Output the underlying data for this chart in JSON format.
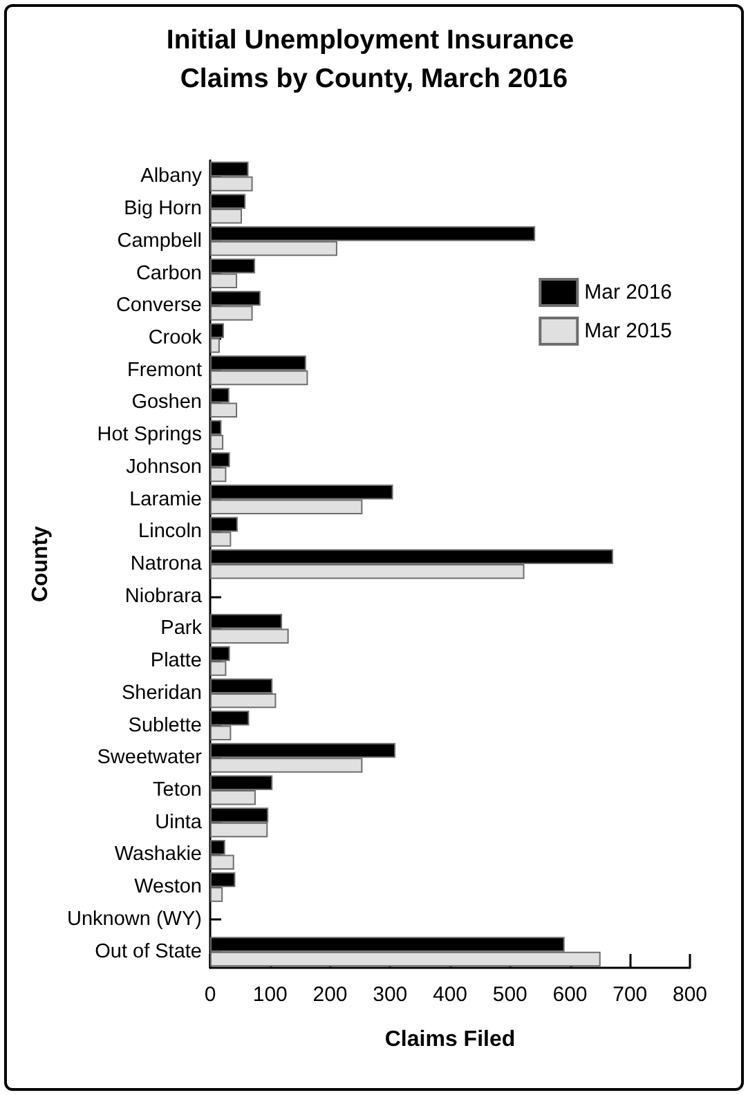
{
  "chart_data": {
    "type": "bar",
    "orientation": "horizontal",
    "title": "Initial Unemployment Insurance Claims by County, March 2016",
    "xlabel": "Claims Filed",
    "ylabel": "County",
    "categories": [
      "Albany",
      "Big Horn",
      "Campbell",
      "Carbon",
      "Converse",
      "Crook",
      "Fremont",
      "Goshen",
      "Hot Springs",
      "Johnson",
      "Laramie",
      "Lincoln",
      "Natrona",
      "Niobrara",
      "Park",
      "Platte",
      "Sheridan",
      "Sublette",
      "Sweetwater",
      "Teton",
      "Uinta",
      "Washakie",
      "Weston",
      "Unknown (WY)",
      "Out of State"
    ],
    "series": [
      {
        "name": "Mar 2016",
        "color": "#000000",
        "values": [
          64,
          59,
          542,
          75,
          84,
          23,
          160,
          32,
          19,
          33,
          305,
          46,
          672,
          0,
          120,
          33,
          104,
          65,
          309,
          104,
          97,
          25,
          42,
          0,
          591
        ]
      },
      {
        "name": "Mar 2015",
        "color": "#e0e0e0",
        "values": [
          71,
          53,
          212,
          45,
          71,
          16,
          163,
          45,
          22,
          27,
          254,
          35,
          524,
          0,
          131,
          27,
          110,
          35,
          254,
          76,
          96,
          40,
          21,
          0,
          651
        ]
      }
    ],
    "xlim": [
      0,
      800
    ],
    "xticks": [
      0,
      100,
      200,
      300,
      400,
      500,
      600,
      700,
      800
    ],
    "grid": false,
    "legend": "top right"
  }
}
